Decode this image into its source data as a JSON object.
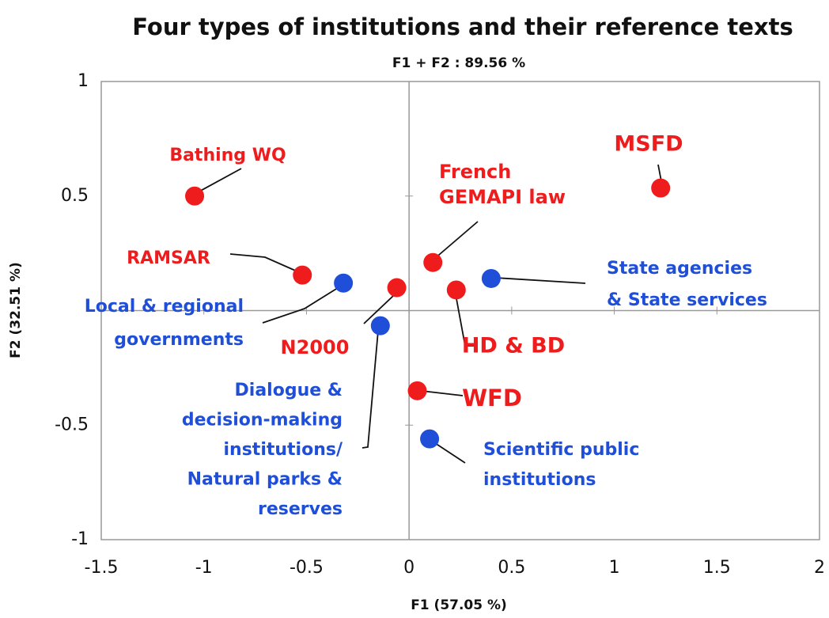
{
  "chart_data": {
    "type": "scatter",
    "title": "Four types of institutions and their reference texts",
    "subtitle": "F1 + F2 : 89.56 %",
    "x_label": "F1 (57.05 %)",
    "y_label": "F2 (32.51 %)",
    "xlim": [
      -1.5,
      2
    ],
    "ylim": [
      -1,
      1
    ],
    "xticks": [
      -1.5,
      -1,
      -0.5,
      0,
      0.5,
      1,
      1.5,
      2
    ],
    "yticks": [
      -1,
      -0.5,
      0.5,
      1
    ],
    "series": [
      {
        "color": "#ee1c1c",
        "labels": [
          [
            "Bathing WQ"
          ],
          [
            "MSFD"
          ],
          [
            "French",
            "GEMAPI law"
          ],
          [
            "RAMSAR"
          ],
          [
            "N2000"
          ],
          [
            "HD & BD"
          ],
          [
            "WFD"
          ]
        ],
        "x": [
          -1.045,
          1.226,
          0.116,
          -0.52,
          -0.06,
          0.23,
          0.04
        ],
        "y": [
          0.5,
          0.535,
          0.21,
          0.155,
          0.1,
          0.09,
          -0.35
        ]
      },
      {
        "color": "#1f4ed8",
        "labels": [
          [
            "Local & regional",
            "governments"
          ],
          [
            "State agencies",
            "& State services"
          ],
          [
            "Dialogue &",
            "decision-making",
            "institutions/",
            "Natural parks &",
            "reserves"
          ],
          [
            "Scientific public",
            "institutions"
          ]
        ],
        "x": [
          -0.32,
          0.4,
          -0.14,
          0.1
        ],
        "y": [
          0.12,
          0.14,
          -0.066,
          -0.56
        ]
      }
    ]
  }
}
